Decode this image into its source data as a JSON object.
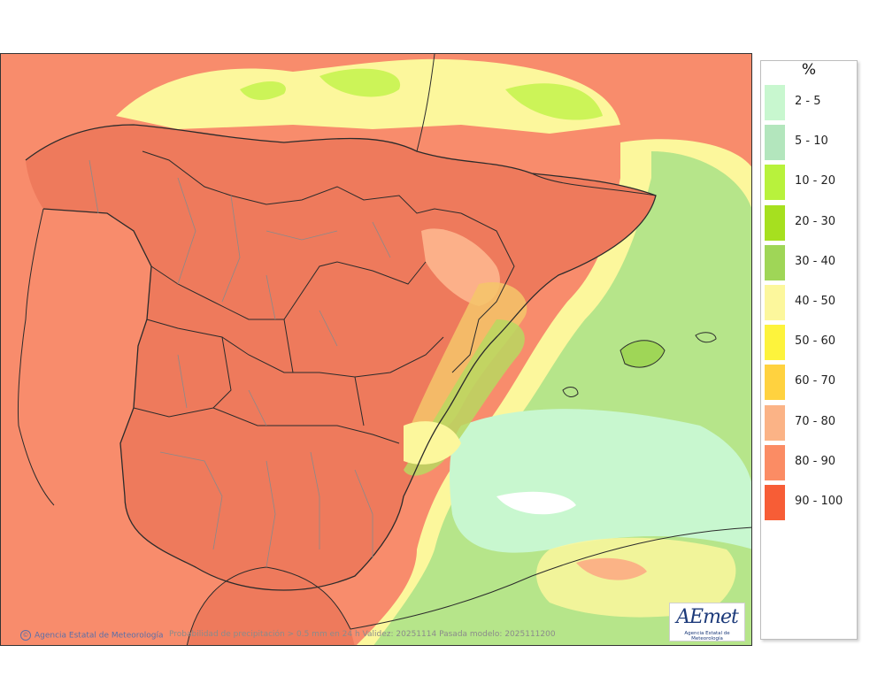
{
  "legend": {
    "title": "%",
    "items": [
      {
        "label": "2 - 5",
        "color": "#c8f7cf"
      },
      {
        "label": "5 - 10",
        "color": "#b3e6bd"
      },
      {
        "label": "10 - 20",
        "color": "#b8f23c"
      },
      {
        "label": "20 - 30",
        "color": "#a6e01f"
      },
      {
        "label": "30 - 40",
        "color": "#9fd657"
      },
      {
        "label": "40 - 50",
        "color": "#fcf79c"
      },
      {
        "label": "50 - 60",
        "color": "#fdf33c"
      },
      {
        "label": "60 - 70",
        "color": "#ffd23f"
      },
      {
        "label": "70 - 80",
        "color": "#fbb386"
      },
      {
        "label": "80 - 90",
        "color": "#fb8c64"
      },
      {
        "label": "90 - 100",
        "color": "#f75d36"
      }
    ]
  },
  "map": {
    "credit": "Agencia Estatal de Meteorología",
    "caption": "Probabilidad de precipitación > 0.5 mm en 24 h Validez: 20251114 Pasada modelo: 2025111200",
    "logo_text": "AEmet",
    "logo_subtext": "Agencia Estatal de Meteorología",
    "colors": {
      "land_high": "#ee7a5c",
      "sea_high": "#f88c6c",
      "border": "#2b2b2b",
      "province_border": "#8a8a8a"
    }
  }
}
